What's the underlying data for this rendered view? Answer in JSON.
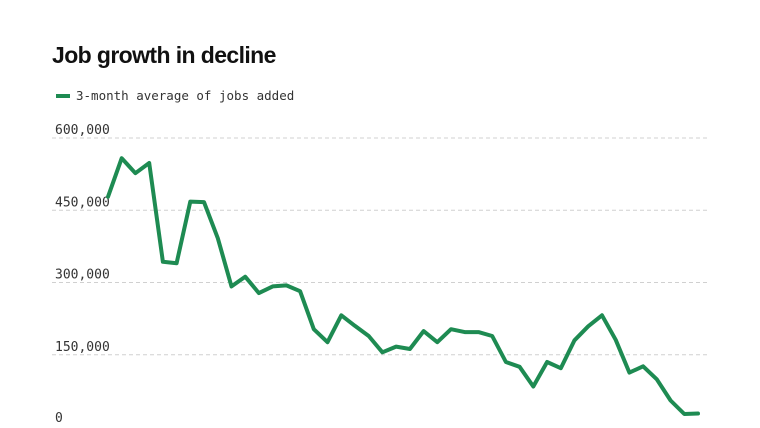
{
  "chart_data": {
    "type": "line",
    "title": "Job growth in decline",
    "legend_placement": "top-left",
    "grid": true,
    "ylim": [
      0,
      600000
    ],
    "yticks": [
      {
        "value": 0,
        "label": "0"
      },
      {
        "value": 150000,
        "label": "150,000"
      },
      {
        "value": 300000,
        "label": "300,000"
      },
      {
        "value": 450000,
        "label": "450,000"
      },
      {
        "value": 600000,
        "label": "600,000"
      }
    ],
    "series": [
      {
        "name": "3-month average of jobs added",
        "color": "#1e8b52",
        "values": [
          478000,
          558000,
          527000,
          548000,
          343000,
          340000,
          468000,
          467000,
          392000,
          292000,
          312000,
          278000,
          292000,
          294000,
          282000,
          203000,
          176000,
          232000,
          210000,
          189000,
          155000,
          167000,
          162000,
          199000,
          176000,
          203000,
          197000,
          197000,
          189000,
          135000,
          125000,
          84000,
          135000,
          122000,
          180000,
          209000,
          232000,
          181000,
          113000,
          126000,
          99000,
          55000,
          27000,
          28000
        ]
      }
    ]
  }
}
